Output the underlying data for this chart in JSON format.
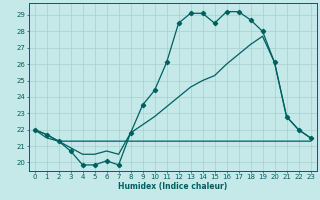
{
  "title": "",
  "xlabel": "Humidex (Indice chaleur)",
  "bg_color": "#c5e8e8",
  "line_color": "#006060",
  "grid_color": "#a8d0d0",
  "xlim": [
    -0.5,
    23.5
  ],
  "ylim": [
    19.5,
    29.7
  ],
  "xticks": [
    0,
    1,
    2,
    3,
    4,
    5,
    6,
    7,
    8,
    9,
    10,
    11,
    12,
    13,
    14,
    15,
    16,
    17,
    18,
    19,
    20,
    21,
    22,
    23
  ],
  "yticks": [
    20,
    21,
    22,
    23,
    24,
    25,
    26,
    27,
    28,
    29
  ],
  "series1_x": [
    0,
    1,
    2,
    3,
    4,
    5,
    6,
    7,
    8,
    9,
    10,
    11,
    12,
    13,
    14,
    15,
    16,
    17,
    18,
    19,
    20,
    21,
    22,
    23
  ],
  "series1_y": [
    22.0,
    21.7,
    21.3,
    20.7,
    19.85,
    19.85,
    20.1,
    19.85,
    21.8,
    23.5,
    24.4,
    26.1,
    28.5,
    29.1,
    29.1,
    28.5,
    29.2,
    29.2,
    28.7,
    28.0,
    26.1,
    22.8,
    22.0,
    21.5
  ],
  "series2_x": [
    0,
    1,
    2,
    3,
    4,
    5,
    6,
    7,
    8,
    9,
    10,
    11,
    12,
    13,
    14,
    15,
    16,
    17,
    18,
    19,
    20,
    21,
    22,
    23
  ],
  "series2_y": [
    22.0,
    21.5,
    21.3,
    21.3,
    21.3,
    21.3,
    21.3,
    21.3,
    21.3,
    21.3,
    21.3,
    21.3,
    21.3,
    21.3,
    21.3,
    21.3,
    21.3,
    21.3,
    21.3,
    21.3,
    21.3,
    21.3,
    21.3,
    21.3
  ],
  "series3_x": [
    0,
    1,
    2,
    3,
    4,
    5,
    6,
    7,
    8,
    9,
    10,
    11,
    12,
    13,
    14,
    15,
    16,
    17,
    18,
    19,
    20,
    21,
    22,
    23
  ],
  "series3_y": [
    22.0,
    21.7,
    21.3,
    20.9,
    20.5,
    20.5,
    20.7,
    20.5,
    21.8,
    22.3,
    22.8,
    23.4,
    24.0,
    24.6,
    25.0,
    25.3,
    26.0,
    26.6,
    27.2,
    27.7,
    26.1,
    22.8,
    22.0,
    21.5
  ]
}
